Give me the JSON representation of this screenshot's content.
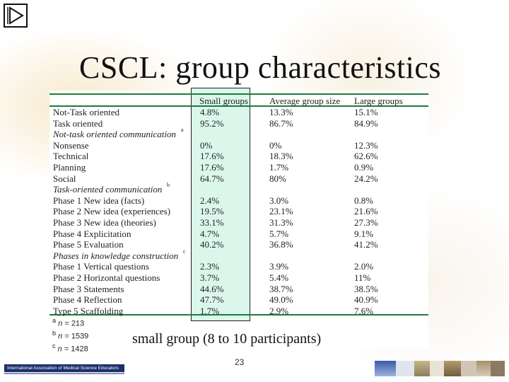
{
  "slide": {
    "title": "CSCL: group characteristics",
    "caption": "small group (8 to 10 participants)",
    "page_number": "23",
    "footer_org": "International Association of Medical Science Educators"
  },
  "table": {
    "headers": [
      "Small groups",
      "Average group size",
      "Large groups"
    ],
    "rows": [
      {
        "label": "Not-Task oriented",
        "vals": [
          "4.8%",
          "13.3%",
          "15.1%"
        ]
      },
      {
        "label": "Task oriented",
        "vals": [
          "95.2%",
          "86.7%",
          "84.9%"
        ]
      },
      {
        "label": "Not-task oriented communication",
        "section": true,
        "sup": "a"
      },
      {
        "label": "Nonsense",
        "vals": [
          "0%",
          "0%",
          "12.3%"
        ]
      },
      {
        "label": "Technical",
        "vals": [
          "17.6%",
          "18.3%",
          "62.6%"
        ]
      },
      {
        "label": "Planning",
        "vals": [
          "17.6%",
          "1.7%",
          "0.9%"
        ]
      },
      {
        "label": "Social",
        "vals": [
          "64.7%",
          "80%",
          "24.2%"
        ]
      },
      {
        "label": "Task-oriented communication",
        "section": true,
        "sup": "b"
      },
      {
        "label": "Phase 1 New idea (facts)",
        "vals": [
          "2.4%",
          "3.0%",
          "0.8%"
        ]
      },
      {
        "label": "Phase 2 New idea (experiences)",
        "vals": [
          "19.5%",
          "23.1%",
          "21.6%"
        ]
      },
      {
        "label": "Phase 3 New idea  (theories)",
        "vals": [
          "33.1%",
          "31.3%",
          "27.3%"
        ]
      },
      {
        "label": "Phase 4 Explicitation",
        "vals": [
          "4.7%",
          "5.7%",
          "9.1%"
        ]
      },
      {
        "label": "Phase 5 Evaluation",
        "vals": [
          "40.2%",
          "36.8%",
          "41.2%"
        ]
      },
      {
        "label": "Phases in knowledge construction",
        "section": true,
        "sup": "c"
      },
      {
        "label": "Phase 1 Vertical questions",
        "vals": [
          "2.3%",
          "3.9%",
          "2.0%"
        ]
      },
      {
        "label": "Phase 2 Horizontal questions",
        "vals": [
          "3.7%",
          "5.4%",
          "11%"
        ]
      },
      {
        "label": "Phase 3 Statements",
        "vals": [
          "44.6%",
          "38.7%",
          "38.5%"
        ]
      },
      {
        "label": "Phase 4 Reflection",
        "vals": [
          "47.7%",
          "49.0%",
          "40.9%"
        ]
      },
      {
        "label": "Type 5 Scaffolding",
        "vals": [
          "1.7%",
          "2.9%",
          "7.6%"
        ]
      }
    ],
    "notes": [
      {
        "mark": "a",
        "n": "n",
        "value": " = 213"
      },
      {
        "mark": "b",
        "n": "n",
        "value": " = 1539"
      },
      {
        "mark": "c",
        "n": "n",
        "value": " = 1428"
      }
    ]
  },
  "colors": {
    "rule": "#1f7a3a",
    "highlight": "#bef0dc",
    "title_text": "#111111"
  },
  "icons": {
    "nav": "play-forward-icon"
  }
}
